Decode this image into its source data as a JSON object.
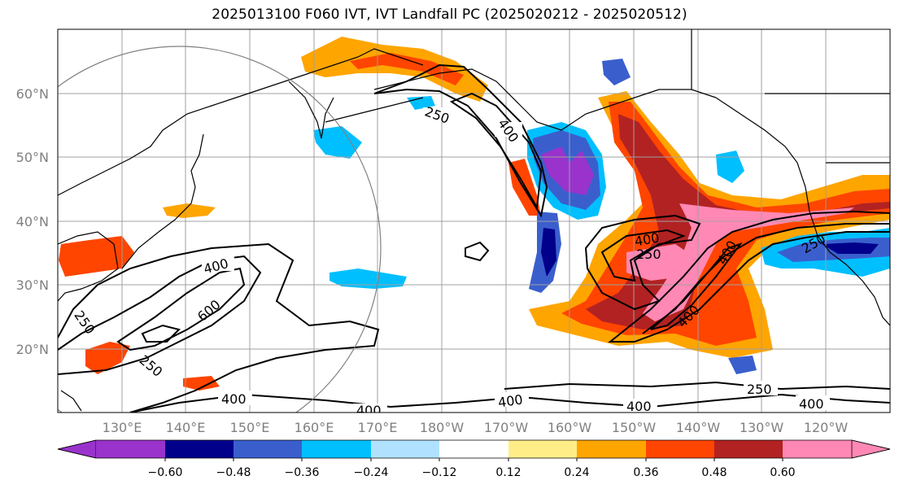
{
  "title": "2025013100 F060 IVT, IVT Landfall PC (2025020212 - 2025020512)",
  "colors": {
    "frame": "#000000",
    "grid": "#a0a0a0",
    "coast": "#000000",
    "bins": [
      "#9933cc",
      "#00008b",
      "#3a5fcd",
      "#00bfff",
      "#b0e2ff",
      "#ffffff",
      "#ffee88",
      "#ffa500",
      "#ff4500",
      "#b22222",
      "#ff88b4",
      "#ff88b4"
    ]
  },
  "map": {
    "lon_labels": [
      "130°E",
      "140°E",
      "150°E",
      "160°E",
      "170°E",
      "180°W",
      "170°W",
      "160°W",
      "150°W",
      "140°W",
      "130°W",
      "120°W"
    ],
    "lat_labels": [
      "60°N",
      "50°N",
      "40°N",
      "30°N",
      "20°N"
    ],
    "contour_labels": [
      "250",
      "400",
      "400",
      "600",
      "250",
      "250",
      "400",
      "400",
      "400",
      "400",
      "400",
      "250",
      "400",
      "250",
      "250",
      "400",
      "400"
    ]
  },
  "colorbar": {
    "ticks": [
      "−0.60",
      "−0.48",
      "−0.36",
      "−0.24",
      "−0.12",
      "0.12",
      "0.24",
      "0.36",
      "0.48",
      "0.60"
    ]
  }
}
